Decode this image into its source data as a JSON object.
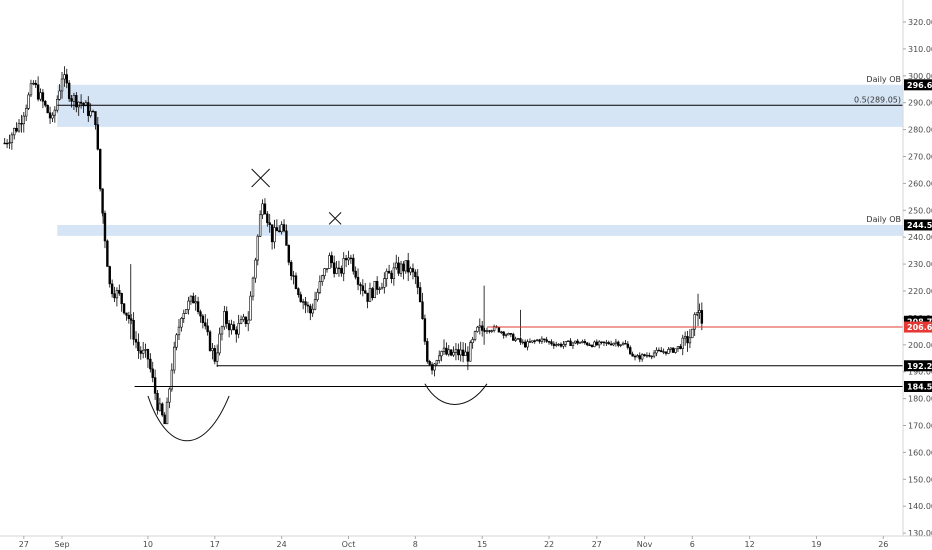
{
  "chart_data": {
    "type": "candlestick",
    "title": "",
    "xlabel": "",
    "ylabel": "",
    "ylim": [
      126,
      326
    ],
    "grid": false,
    "y_ticks": [
      130,
      140,
      150,
      160,
      170,
      180,
      190,
      200,
      210,
      220,
      230,
      240,
      250,
      260,
      270,
      280,
      290,
      300,
      310,
      320
    ],
    "x_ticks": [
      {
        "label": "27",
        "day": -4
      },
      {
        "label": "Sep",
        "day": 0
      },
      {
        "label": "10",
        "day": 9
      },
      {
        "label": "17",
        "day": 16
      },
      {
        "label": "24",
        "day": 23
      },
      {
        "label": "Oct",
        "day": 30
      },
      {
        "label": "8",
        "day": 37
      },
      {
        "label": "15",
        "day": 44
      },
      {
        "label": "22",
        "day": 51
      },
      {
        "label": "27",
        "day": 56
      },
      {
        "label": "Nov",
        "day": 61
      },
      {
        "label": "6",
        "day": 66
      },
      {
        "label": "12",
        "day": 72
      },
      {
        "label": "19",
        "day": 79
      },
      {
        "label": "26",
        "day": 86
      }
    ],
    "price_path": [
      [
        -6,
        275
      ],
      [
        -4.5,
        282
      ],
      [
        -3,
        297
      ],
      [
        -2,
        290
      ],
      [
        -1,
        283
      ],
      [
        0,
        300
      ],
      [
        1,
        292
      ],
      [
        2,
        290
      ],
      [
        3.5,
        284
      ],
      [
        4,
        258
      ],
      [
        5,
        222
      ],
      [
        6,
        218
      ],
      [
        7,
        210
      ],
      [
        8,
        198
      ],
      [
        9,
        195
      ],
      [
        10,
        178
      ],
      [
        10.8,
        170
      ],
      [
        11.5,
        192
      ],
      [
        12.5,
        212
      ],
      [
        14,
        218
      ],
      [
        15,
        205
      ],
      [
        16,
        195
      ],
      [
        17,
        210
      ],
      [
        18,
        205
      ],
      [
        19.5,
        210
      ],
      [
        20.5,
        240
      ],
      [
        21,
        255
      ],
      [
        22,
        240
      ],
      [
        23,
        244
      ],
      [
        24,
        228
      ],
      [
        25,
        218
      ],
      [
        26,
        212
      ],
      [
        27,
        222
      ],
      [
        28,
        232
      ],
      [
        29,
        226
      ],
      [
        30,
        234
      ],
      [
        31,
        225
      ],
      [
        32,
        218
      ],
      [
        33,
        222
      ],
      [
        34,
        225
      ],
      [
        35,
        228
      ],
      [
        36,
        229
      ],
      [
        37,
        225
      ],
      [
        37.5,
        215
      ],
      [
        38.2,
        196
      ],
      [
        38.8,
        192
      ],
      [
        39.5,
        198
      ],
      [
        40.5,
        196
      ],
      [
        41.5,
        197
      ],
      [
        42.5,
        196
      ],
      [
        43.5,
        205
      ],
      [
        44.5,
        206
      ],
      [
        45.5,
        206
      ],
      [
        47,
        203
      ],
      [
        48.5,
        200
      ],
      [
        50,
        202
      ],
      [
        52,
        200
      ],
      [
        54,
        201
      ],
      [
        56,
        200
      ],
      [
        58,
        201
      ],
      [
        59,
        200
      ],
      [
        60,
        195
      ],
      [
        62,
        197
      ],
      [
        64,
        198
      ],
      [
        65,
        200
      ],
      [
        66,
        204
      ],
      [
        66.5,
        214
      ],
      [
        67,
        208.75
      ]
    ],
    "annotations": {
      "zones": [
        {
          "label": "Daily OB",
          "y_low": 281,
          "y_high": 296.65
        },
        {
          "label": "Daily OB",
          "y_low": 240.5,
          "y_high": 244.55
        }
      ],
      "levels": [
        {
          "label": "0.5(289.05)",
          "value": 289.05,
          "color": "#000000"
        },
        {
          "label": "",
          "value": 206.6,
          "color": "#e53935"
        },
        {
          "label": "",
          "value": 192.2,
          "color": "#000000"
        },
        {
          "label": "",
          "value": 184.5,
          "color": "#000000"
        }
      ],
      "price_labels": [
        {
          "text": "296.65",
          "value": 296.65,
          "bg": "#000000",
          "fg": "#ffffff"
        },
        {
          "text": "244.55",
          "value": 244.55,
          "bg": "#000000",
          "fg": "#ffffff"
        },
        {
          "text": "208.75",
          "value": 208.75,
          "bg": "#000000",
          "fg": "#ffffff"
        },
        {
          "text": "206.60",
          "value": 206.6,
          "bg": "#e53935",
          "fg": "#ffffff"
        },
        {
          "text": "192.20",
          "value": 192.2,
          "bg": "#000000",
          "fg": "#ffffff"
        },
        {
          "text": "184.50",
          "value": 184.5,
          "bg": "#000000",
          "fg": "#ffffff"
        }
      ],
      "cross_markers": [
        {
          "day": 20.8,
          "value": 262
        },
        {
          "day": 28.6,
          "value": 247
        }
      ],
      "arc_markers": [
        {
          "day_start": 9,
          "day_end": 17.5,
          "y_top": 181,
          "y_bottom": 161
        },
        {
          "day_start": 38,
          "day_end": 44.5,
          "y_top": 185.5,
          "y_bottom": 177.5
        }
      ]
    }
  },
  "colors": {
    "candle": "#000000",
    "zone": "#c8dcf3",
    "resistance": "#e53935",
    "axis_text": "#4a4a4a"
  }
}
